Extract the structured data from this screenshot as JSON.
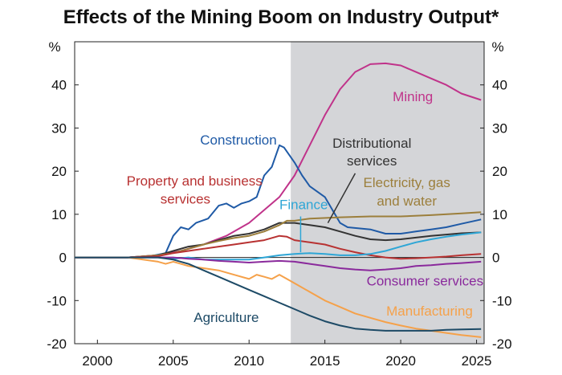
{
  "title": "Effects of the Mining Boom on Industry Output*",
  "chart_data": {
    "type": "line",
    "unit_left": "%",
    "unit_right": "%",
    "xlim": [
      1998.5,
      2025.5
    ],
    "ylim": [
      -20,
      50
    ],
    "x_ticks": [
      2000,
      2005,
      2010,
      2015,
      2020,
      2025
    ],
    "y_ticks": [
      40,
      30,
      20,
      10,
      0,
      -10,
      -20
    ],
    "shaded_region": [
      2012.75,
      2025.5
    ],
    "series": [
      {
        "name": "Mining",
        "color": "#c0338a",
        "points": [
          [
            1998.5,
            0
          ],
          [
            2002,
            0
          ],
          [
            2004,
            0.5
          ],
          [
            2005.5,
            1.5
          ],
          [
            2007,
            3
          ],
          [
            2008.5,
            5
          ],
          [
            2010,
            8
          ],
          [
            2011,
            11
          ],
          [
            2012,
            14
          ],
          [
            2013,
            19
          ],
          [
            2014,
            26
          ],
          [
            2015,
            33
          ],
          [
            2016,
            39
          ],
          [
            2017,
            43
          ],
          [
            2018,
            44.8
          ],
          [
            2019,
            45
          ],
          [
            2020,
            44.5
          ],
          [
            2021,
            43
          ],
          [
            2022,
            41.5
          ],
          [
            2023,
            40
          ],
          [
            2024,
            38
          ],
          [
            2025.3,
            36.5
          ]
        ]
      },
      {
        "name": "Construction",
        "color": "#1f5aa6",
        "points": [
          [
            1998.5,
            0
          ],
          [
            2002,
            0
          ],
          [
            2003.5,
            0.3
          ],
          [
            2004.5,
            1
          ],
          [
            2005,
            5
          ],
          [
            2005.5,
            7
          ],
          [
            2006,
            6.5
          ],
          [
            2006.5,
            8
          ],
          [
            2007.3,
            9
          ],
          [
            2008,
            12
          ],
          [
            2008.5,
            12.5
          ],
          [
            2009,
            11.5
          ],
          [
            2009.5,
            12.5
          ],
          [
            2010,
            13
          ],
          [
            2010.5,
            14
          ],
          [
            2011,
            19
          ],
          [
            2011.5,
            21
          ],
          [
            2012,
            26
          ],
          [
            2012.3,
            25.5
          ],
          [
            2013,
            22
          ],
          [
            2013.5,
            19
          ],
          [
            2014,
            16.5
          ],
          [
            2015,
            14
          ],
          [
            2015.5,
            11
          ],
          [
            2016,
            8
          ],
          [
            2016.5,
            7
          ],
          [
            2018,
            6.5
          ],
          [
            2019,
            5.5
          ],
          [
            2020,
            5.5
          ],
          [
            2021,
            6
          ],
          [
            2022,
            6.5
          ],
          [
            2023,
            7
          ],
          [
            2024,
            7.8
          ],
          [
            2025.3,
            8.8
          ]
        ]
      },
      {
        "name": "Distributional services",
        "color": "#333333",
        "points": [
          [
            1998.5,
            0
          ],
          [
            2002,
            0
          ],
          [
            2004,
            0.5
          ],
          [
            2005,
            1.5
          ],
          [
            2006,
            2.5
          ],
          [
            2007,
            3
          ],
          [
            2008,
            4
          ],
          [
            2009,
            5
          ],
          [
            2010,
            5.5
          ],
          [
            2011,
            6.5
          ],
          [
            2012,
            8
          ],
          [
            2013,
            8
          ],
          [
            2014,
            7.5
          ],
          [
            2015,
            7
          ],
          [
            2016,
            6
          ],
          [
            2017,
            5
          ],
          [
            2018,
            4.2
          ],
          [
            2019,
            4
          ],
          [
            2020,
            4.2
          ],
          [
            2021,
            4.6
          ],
          [
            2022,
            5
          ],
          [
            2023,
            5.3
          ],
          [
            2024,
            5.6
          ],
          [
            2025.3,
            5.8
          ]
        ]
      },
      {
        "name": "Electricity, gas and water",
        "color": "#9c7f3c",
        "points": [
          [
            1998.5,
            0
          ],
          [
            2002,
            0
          ],
          [
            2004,
            0.5
          ],
          [
            2005,
            1
          ],
          [
            2006,
            2
          ],
          [
            2007,
            3
          ],
          [
            2008,
            3.8
          ],
          [
            2009,
            4.5
          ],
          [
            2010,
            5
          ],
          [
            2011,
            6
          ],
          [
            2012,
            7.5
          ],
          [
            2012.5,
            8.5
          ],
          [
            2013,
            8.5
          ],
          [
            2014,
            9
          ],
          [
            2016,
            9.3
          ],
          [
            2018,
            9.5
          ],
          [
            2020,
            9.5
          ],
          [
            2022,
            9.8
          ],
          [
            2024,
            10.2
          ],
          [
            2025.3,
            10.5
          ]
        ]
      },
      {
        "name": "Property and business services",
        "color": "#b83232",
        "points": [
          [
            1998.5,
            0
          ],
          [
            2002,
            0
          ],
          [
            2004,
            0.3
          ],
          [
            2005,
            1
          ],
          [
            2006,
            1.5
          ],
          [
            2007,
            2
          ],
          [
            2008,
            2.5
          ],
          [
            2009,
            3
          ],
          [
            2010,
            3.5
          ],
          [
            2011,
            4
          ],
          [
            2012,
            5
          ],
          [
            2012.5,
            4.8
          ],
          [
            2013,
            4
          ],
          [
            2014,
            3.5
          ],
          [
            2015,
            3
          ],
          [
            2016,
            2
          ],
          [
            2017,
            1.2
          ],
          [
            2018,
            0.5
          ],
          [
            2019,
            0
          ],
          [
            2020,
            -0.3
          ],
          [
            2021,
            -0.2
          ],
          [
            2022,
            0
          ],
          [
            2023,
            0.2
          ],
          [
            2024,
            0.5
          ],
          [
            2025.3,
            0.8
          ]
        ]
      },
      {
        "name": "Finance",
        "color": "#2ea6d6",
        "points": [
          [
            1998.5,
            0
          ],
          [
            2002,
            0
          ],
          [
            2004,
            0
          ],
          [
            2005,
            -0.3
          ],
          [
            2006,
            0
          ],
          [
            2007,
            -0.5
          ],
          [
            2008,
            -0.5
          ],
          [
            2009,
            -0.5
          ],
          [
            2010,
            -0.5
          ],
          [
            2011,
            0
          ],
          [
            2012,
            0.5
          ],
          [
            2013,
            0.8
          ],
          [
            2014,
            1
          ],
          [
            2015,
            0.8
          ],
          [
            2016,
            0.5
          ],
          [
            2017,
            0.5
          ],
          [
            2018,
            0.8
          ],
          [
            2019,
            1.5
          ],
          [
            2020,
            2.5
          ],
          [
            2021,
            3.5
          ],
          [
            2022,
            4.2
          ],
          [
            2023,
            4.8
          ],
          [
            2024,
            5.3
          ],
          [
            2025.3,
            5.8
          ]
        ]
      },
      {
        "name": "Consumer services",
        "color": "#8a2a9c",
        "points": [
          [
            1998.5,
            0
          ],
          [
            2002,
            0
          ],
          [
            2004,
            0
          ],
          [
            2005,
            0
          ],
          [
            2006,
            -0.3
          ],
          [
            2007,
            -0.5
          ],
          [
            2008,
            -0.8
          ],
          [
            2009,
            -1
          ],
          [
            2010,
            -1.2
          ],
          [
            2011,
            -1
          ],
          [
            2012,
            -0.8
          ],
          [
            2013,
            -1
          ],
          [
            2014,
            -1.5
          ],
          [
            2015,
            -2
          ],
          [
            2016,
            -2.5
          ],
          [
            2017,
            -2.8
          ],
          [
            2018,
            -3
          ],
          [
            2019,
            -2.8
          ],
          [
            2020,
            -2.5
          ],
          [
            2021,
            -2
          ],
          [
            2022,
            -1.8
          ],
          [
            2023,
            -1.5
          ],
          [
            2024,
            -1.3
          ],
          [
            2025.3,
            -1
          ]
        ]
      },
      {
        "name": "Manufacturing",
        "color": "#f5a14a",
        "points": [
          [
            1998.5,
            0
          ],
          [
            2002,
            0
          ],
          [
            2003,
            -0.5
          ],
          [
            2004,
            -1
          ],
          [
            2004.5,
            -1.5
          ],
          [
            2005,
            -1
          ],
          [
            2005.5,
            -1.5
          ],
          [
            2006,
            -2
          ],
          [
            2007,
            -2.5
          ],
          [
            2008,
            -3
          ],
          [
            2009,
            -4
          ],
          [
            2010,
            -5
          ],
          [
            2010.5,
            -4
          ],
          [
            2011,
            -4.5
          ],
          [
            2011.5,
            -5
          ],
          [
            2012,
            -4
          ],
          [
            2012.5,
            -5
          ],
          [
            2013,
            -6
          ],
          [
            2014,
            -8
          ],
          [
            2015,
            -10
          ],
          [
            2016,
            -11.5
          ],
          [
            2017,
            -13
          ],
          [
            2018,
            -14
          ],
          [
            2019,
            -15
          ],
          [
            2020,
            -15.8
          ],
          [
            2021,
            -16.5
          ],
          [
            2022,
            -17
          ],
          [
            2023,
            -17.5
          ],
          [
            2024,
            -18
          ],
          [
            2025.3,
            -18.5
          ]
        ]
      },
      {
        "name": "Agriculture",
        "color": "#1d4a66",
        "points": [
          [
            1998.5,
            0
          ],
          [
            2002,
            0
          ],
          [
            2004,
            0
          ],
          [
            2005,
            -0.5
          ],
          [
            2006,
            -1.5
          ],
          [
            2007,
            -3
          ],
          [
            2008,
            -4.5
          ],
          [
            2009,
            -6
          ],
          [
            2010,
            -7.5
          ],
          [
            2011,
            -9
          ],
          [
            2012,
            -10.5
          ],
          [
            2013,
            -12
          ],
          [
            2014,
            -13.5
          ],
          [
            2015,
            -14.8
          ],
          [
            2016,
            -15.8
          ],
          [
            2017,
            -16.5
          ],
          [
            2018,
            -16.8
          ],
          [
            2019,
            -17
          ],
          [
            2020,
            -17
          ],
          [
            2021,
            -17
          ],
          [
            2022,
            -17
          ],
          [
            2023,
            -16.8
          ],
          [
            2024,
            -16.7
          ],
          [
            2025.3,
            -16.6
          ]
        ]
      }
    ],
    "labels": [
      {
        "text": "Mining",
        "color": "#c0338a",
        "x": 2020.8,
        "y": 36.2,
        "anchor": "middle"
      },
      {
        "text": "Construction",
        "color": "#1f5aa6",
        "x": 2009.3,
        "y": 26.2,
        "anchor": "middle"
      },
      {
        "text": "Distributional",
        "color": "#333333",
        "x": 2018.1,
        "y": 25.4,
        "anchor": "middle"
      },
      {
        "text": "services",
        "color": "#333333",
        "x": 2018.1,
        "y": 21.3,
        "anchor": "middle"
      },
      {
        "text": "Property and business",
        "color": "#b83232",
        "x": 2006.4,
        "y": 16.7,
        "anchor": "middle"
      },
      {
        "text": "services",
        "color": "#b83232",
        "x": 2005.8,
        "y": 12.5,
        "anchor": "middle"
      },
      {
        "text": "Finance",
        "color": "#2ea6d6",
        "x": 2013.6,
        "y": 11.2,
        "anchor": "middle"
      },
      {
        "text": "Electricity, gas",
        "color": "#9c7f3c",
        "x": 2020.4,
        "y": 16.3,
        "anchor": "middle"
      },
      {
        "text": "and water",
        "color": "#9c7f3c",
        "x": 2020.4,
        "y": 12.0,
        "anchor": "middle"
      },
      {
        "text": "Consumer services",
        "color": "#8a2a9c",
        "x": 2021.6,
        "y": -6.5,
        "anchor": "middle"
      },
      {
        "text": "Manufacturing",
        "color": "#f5a14a",
        "x": 2021.9,
        "y": -13.5,
        "anchor": "middle"
      },
      {
        "text": "Agriculture",
        "color": "#1d4a66",
        "x": 2008.5,
        "y": -15.0,
        "anchor": "middle"
      }
    ]
  }
}
